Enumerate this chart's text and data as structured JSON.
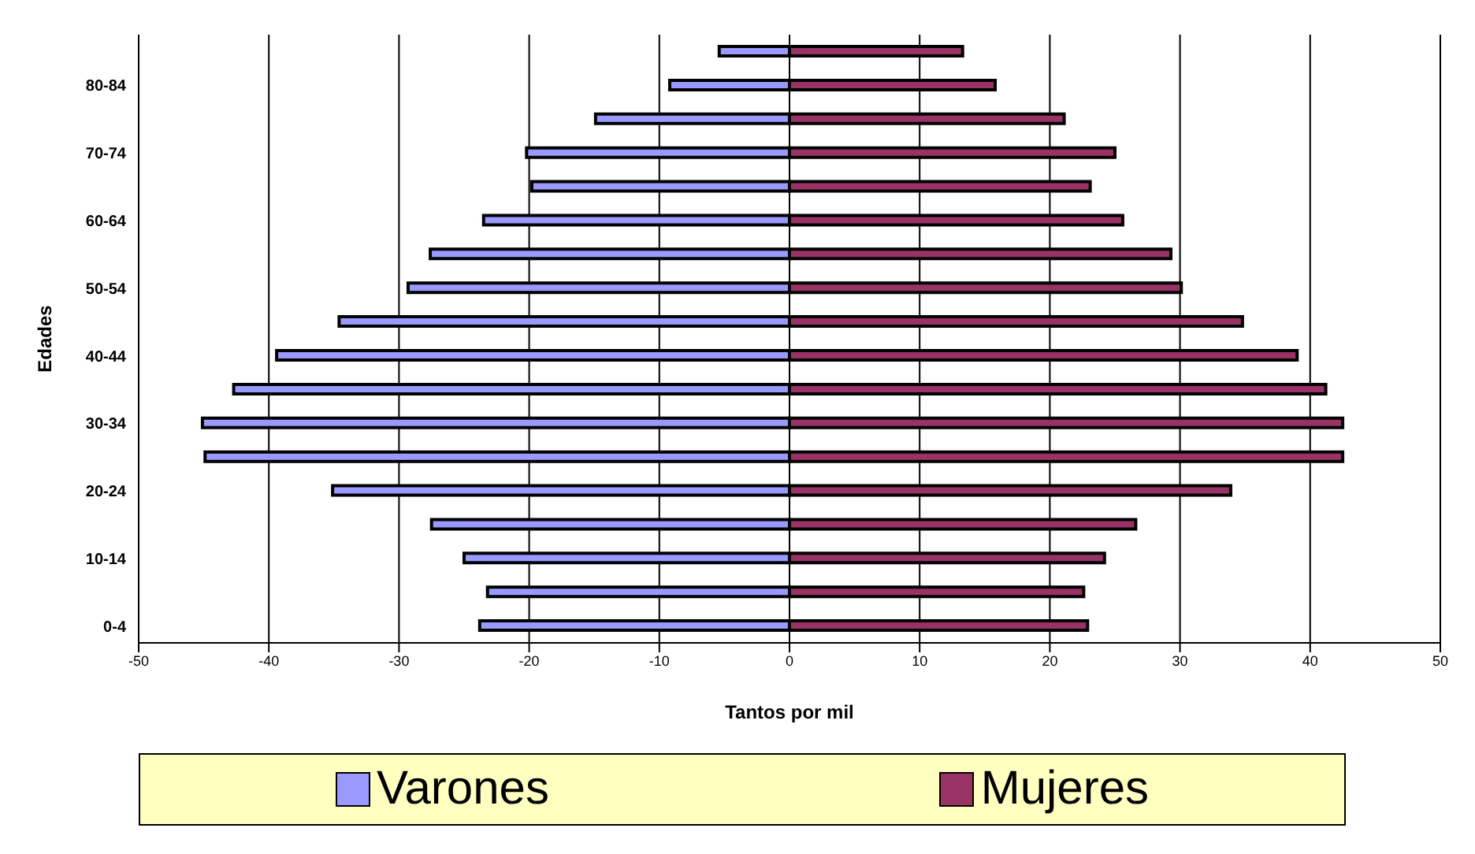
{
  "chart_data": {
    "type": "bar",
    "orientation": "horizontal",
    "stacked": true,
    "xlabel": "Tantos por mil",
    "ylabel": "Edades",
    "categories": [
      null,
      "80-84",
      null,
      "70-74",
      null,
      "60-64",
      null,
      "50-54",
      null,
      "40-44",
      null,
      "30-34",
      null,
      "20-24",
      null,
      "10-14",
      null,
      "0-4"
    ],
    "series": [
      {
        "name": "Varones",
        "color": "#9999ff",
        "values": [
          -5.4,
          -9.2,
          -14.9,
          -20.2,
          -19.8,
          -23.5,
          -27.6,
          -29.3,
          -34.6,
          -39.4,
          -42.7,
          -45.1,
          -44.9,
          -35.1,
          -27.5,
          -25.0,
          -23.2,
          -23.8
        ]
      },
      {
        "name": "Mujeres",
        "color": "#993366",
        "values": [
          13.3,
          15.8,
          21.1,
          25.0,
          23.1,
          25.6,
          29.3,
          30.1,
          34.8,
          39.0,
          41.2,
          42.5,
          42.5,
          33.9,
          26.6,
          24.2,
          22.6,
          22.9
        ]
      }
    ],
    "xlim": [
      -50,
      50
    ],
    "xticks": [
      -50,
      -40,
      -30,
      -20,
      -10,
      0,
      10,
      20,
      30,
      40,
      50
    ],
    "grid": "x",
    "legend": "bottom"
  }
}
